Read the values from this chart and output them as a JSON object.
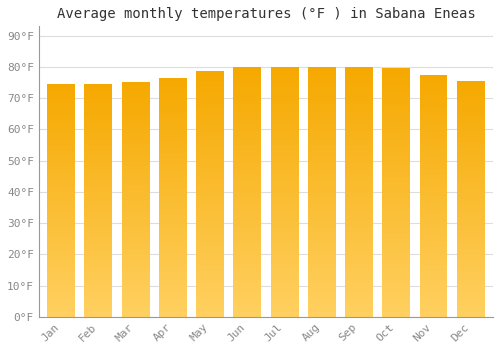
{
  "title": "Average monthly temperatures (°F ) in Sabana Eneas",
  "months": [
    "Jan",
    "Feb",
    "Mar",
    "Apr",
    "May",
    "Jun",
    "Jul",
    "Aug",
    "Sep",
    "Oct",
    "Nov",
    "Dec"
  ],
  "values": [
    74.5,
    74.5,
    75.0,
    76.5,
    78.5,
    80.0,
    80.0,
    80.0,
    80.0,
    79.5,
    77.5,
    75.5
  ],
  "bar_color_bottom": "#FFD060",
  "bar_color_top": "#F5A800",
  "ytick_labels": [
    "0°F",
    "10°F",
    "20°F",
    "30°F",
    "40°F",
    "50°F",
    "60°F",
    "70°F",
    "80°F",
    "90°F"
  ],
  "ytick_values": [
    0,
    10,
    20,
    30,
    40,
    50,
    60,
    70,
    80,
    90
  ],
  "ylim": [
    0,
    93
  ],
  "background_color": "#ffffff",
  "grid_color": "#dddddd",
  "title_fontsize": 10,
  "tick_fontsize": 8,
  "title_color": "#333333",
  "tick_color": "#888888",
  "font_family": "monospace",
  "bar_width": 0.75
}
